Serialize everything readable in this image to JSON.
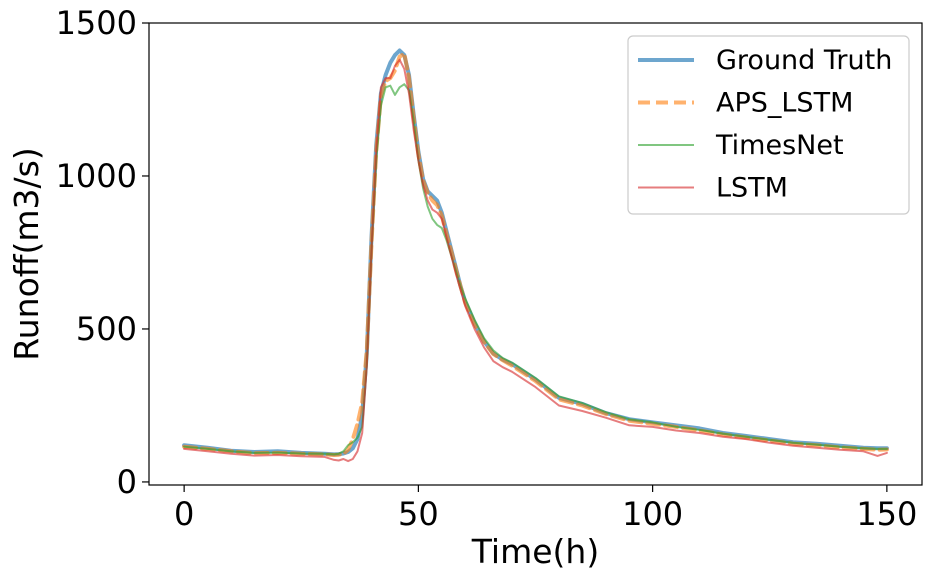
{
  "chart_data": {
    "type": "line",
    "title": "",
    "xlabel": "Time(h)",
    "ylabel": "Runoff(m3/s)",
    "xlim": [
      -7.5,
      157.5
    ],
    "ylim": [
      -10,
      1500
    ],
    "xticks": [
      0,
      50,
      100,
      150
    ],
    "yticks": [
      0,
      500,
      1000,
      1500
    ],
    "grid": false,
    "legend": "top-right",
    "x": [
      0,
      5,
      10,
      15,
      20,
      25,
      30,
      32,
      33,
      34,
      35,
      36,
      37,
      38,
      39,
      40,
      41,
      42,
      43,
      44,
      45,
      46,
      47,
      48,
      49,
      50,
      51,
      52,
      53,
      54,
      55,
      56,
      57,
      58,
      59,
      60,
      62,
      64,
      66,
      68,
      70,
      75,
      80,
      85,
      90,
      95,
      100,
      105,
      110,
      115,
      120,
      125,
      130,
      135,
      140,
      145,
      148,
      150
    ],
    "series": [
      {
        "name": "Ground Truth",
        "color": "#1f77b4",
        "style": "solid",
        "width": 4,
        "opacity": 0.65,
        "values": [
          120,
          112,
          102,
          98,
          100,
          95,
          92,
          90,
          91,
          93,
          98,
          110,
          140,
          220,
          420,
          800,
          1100,
          1270,
          1330,
          1370,
          1395,
          1410,
          1395,
          1330,
          1200,
          1080,
          990,
          950,
          935,
          920,
          880,
          820,
          760,
          700,
          640,
          590,
          520,
          460,
          420,
          400,
          385,
          335,
          275,
          255,
          225,
          205,
          195,
          185,
          175,
          160,
          150,
          140,
          130,
          125,
          118,
          112,
          110,
          110
        ]
      },
      {
        "name": "APS_LSTM",
        "color": "#ff7f0e",
        "style": "dashed",
        "width": 4,
        "opacity": 0.6,
        "values": [
          115,
          108,
          100,
          94,
          95,
          92,
          90,
          88,
          89,
          92,
          105,
          140,
          190,
          260,
          430,
          780,
          1080,
          1260,
          1310,
          1320,
          1345,
          1390,
          1400,
          1320,
          1190,
          1070,
          985,
          945,
          920,
          905,
          870,
          810,
          755,
          695,
          640,
          585,
          515,
          458,
          418,
          398,
          380,
          330,
          270,
          250,
          222,
          200,
          190,
          180,
          168,
          155,
          145,
          135,
          125,
          120,
          113,
          108,
          105,
          106
        ]
      },
      {
        "name": "TimesNet",
        "color": "#2ca02c",
        "style": "solid",
        "width": 2,
        "opacity": 0.6,
        "values": [
          115,
          108,
          100,
          95,
          96,
          93,
          92,
          90,
          92,
          100,
          120,
          130,
          145,
          180,
          380,
          760,
          1050,
          1230,
          1290,
          1295,
          1265,
          1290,
          1300,
          1280,
          1180,
          1050,
          960,
          900,
          860,
          840,
          830,
          790,
          740,
          690,
          640,
          600,
          530,
          470,
          430,
          405,
          390,
          340,
          280,
          258,
          228,
          205,
          195,
          180,
          170,
          158,
          148,
          138,
          128,
          122,
          115,
          110,
          108,
          108
        ]
      },
      {
        "name": "LSTM",
        "color": "#d62728",
        "style": "solid",
        "width": 2,
        "opacity": 0.6,
        "values": [
          108,
          100,
          92,
          86,
          88,
          84,
          82,
          72,
          70,
          75,
          68,
          75,
          100,
          160,
          380,
          760,
          1080,
          1290,
          1320,
          1320,
          1360,
          1380,
          1350,
          1270,
          1150,
          1050,
          970,
          920,
          890,
          880,
          860,
          800,
          740,
          680,
          630,
          575,
          500,
          440,
          395,
          375,
          360,
          310,
          250,
          232,
          210,
          185,
          180,
          168,
          160,
          148,
          140,
          128,
          118,
          112,
          105,
          100,
          85,
          95
        ]
      }
    ]
  }
}
